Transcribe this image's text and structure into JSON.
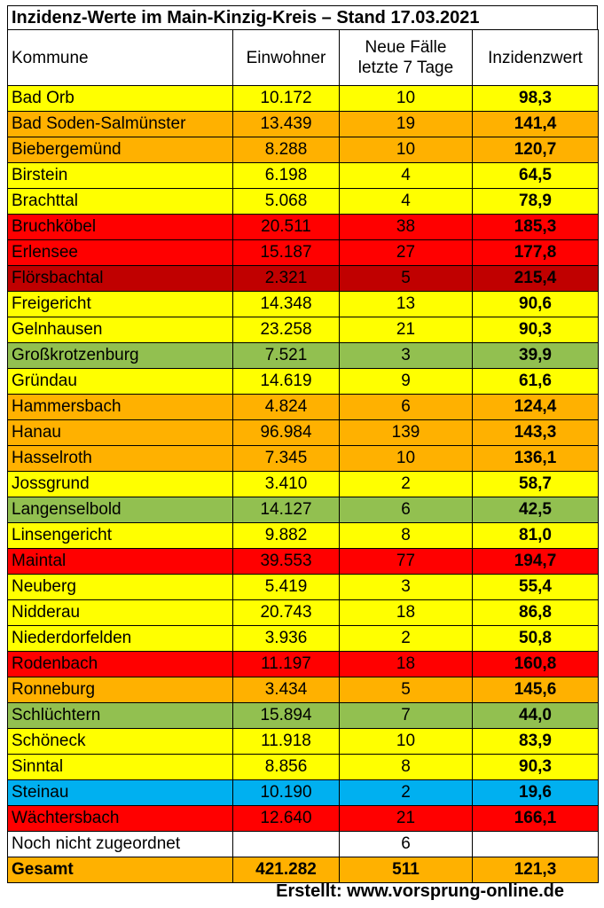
{
  "title": "Inzidenz-Werte im Main-Kinzig-Kreis – Stand 17.03.2021",
  "headers": {
    "kommune": "Kommune",
    "einwohner": "Einwohner",
    "faelle_line1": "Neue Fälle",
    "faelle_line2": "letzte 7 Tage",
    "inzidenz": "Inzidenzwert"
  },
  "colors": {
    "yellow": "#ffff00",
    "orange": "#ffb100",
    "red": "#ff0000",
    "darkred": "#c00000",
    "green": "#92c050",
    "blue": "#00b0f0",
    "white": "#ffffff",
    "total": "#ffb100"
  },
  "rows": [
    {
      "kommune": "Bad Orb",
      "einwohner": "10.172",
      "faelle": "10",
      "inzidenz": "98,3",
      "color": "yellow"
    },
    {
      "kommune": "Bad Soden-Salmünster",
      "einwohner": "13.439",
      "faelle": "19",
      "inzidenz": "141,4",
      "color": "orange"
    },
    {
      "kommune": "Biebergemünd",
      "einwohner": "8.288",
      "faelle": "10",
      "inzidenz": "120,7",
      "color": "orange"
    },
    {
      "kommune": "Birstein",
      "einwohner": "6.198",
      "faelle": "4",
      "inzidenz": "64,5",
      "color": "yellow"
    },
    {
      "kommune": "Brachttal",
      "einwohner": "5.068",
      "faelle": "4",
      "inzidenz": "78,9",
      "color": "yellow"
    },
    {
      "kommune": "Bruchköbel",
      "einwohner": "20.511",
      "faelle": "38",
      "inzidenz": "185,3",
      "color": "red"
    },
    {
      "kommune": "Erlensee",
      "einwohner": "15.187",
      "faelle": "27",
      "inzidenz": "177,8",
      "color": "red"
    },
    {
      "kommune": "Flörsbachtal",
      "einwohner": "2.321",
      "faelle": "5",
      "inzidenz": "215,4",
      "color": "darkred"
    },
    {
      "kommune": "Freigericht",
      "einwohner": "14.348",
      "faelle": "13",
      "inzidenz": "90,6",
      "color": "yellow"
    },
    {
      "kommune": "Gelnhausen",
      "einwohner": "23.258",
      "faelle": "21",
      "inzidenz": "90,3",
      "color": "yellow"
    },
    {
      "kommune": "Großkrotzenburg",
      "einwohner": "7.521",
      "faelle": "3",
      "inzidenz": "39,9",
      "color": "green"
    },
    {
      "kommune": "Gründau",
      "einwohner": "14.619",
      "faelle": "9",
      "inzidenz": "61,6",
      "color": "yellow"
    },
    {
      "kommune": "Hammersbach",
      "einwohner": "4.824",
      "faelle": "6",
      "inzidenz": "124,4",
      "color": "orange"
    },
    {
      "kommune": "Hanau",
      "einwohner": "96.984",
      "faelle": "139",
      "inzidenz": "143,3",
      "color": "orange"
    },
    {
      "kommune": "Hasselroth",
      "einwohner": "7.345",
      "faelle": "10",
      "inzidenz": "136,1",
      "color": "orange"
    },
    {
      "kommune": "Jossgrund",
      "einwohner": "3.410",
      "faelle": "2",
      "inzidenz": "58,7",
      "color": "yellow"
    },
    {
      "kommune": "Langenselbold",
      "einwohner": "14.127",
      "faelle": "6",
      "inzidenz": "42,5",
      "color": "green"
    },
    {
      "kommune": "Linsengericht",
      "einwohner": "9.882",
      "faelle": "8",
      "inzidenz": "81,0",
      "color": "yellow"
    },
    {
      "kommune": "Maintal",
      "einwohner": "39.553",
      "faelle": "77",
      "inzidenz": "194,7",
      "color": "red"
    },
    {
      "kommune": "Neuberg",
      "einwohner": "5.419",
      "faelle": "3",
      "inzidenz": "55,4",
      "color": "yellow"
    },
    {
      "kommune": "Nidderau",
      "einwohner": "20.743",
      "faelle": "18",
      "inzidenz": "86,8",
      "color": "yellow"
    },
    {
      "kommune": "Niederdorfelden",
      "einwohner": "3.936",
      "faelle": "2",
      "inzidenz": "50,8",
      "color": "yellow"
    },
    {
      "kommune": "Rodenbach",
      "einwohner": "11.197",
      "faelle": "18",
      "inzidenz": "160,8",
      "color": "red"
    },
    {
      "kommune": "Ronneburg",
      "einwohner": "3.434",
      "faelle": "5",
      "inzidenz": "145,6",
      "color": "orange"
    },
    {
      "kommune": "Schlüchtern",
      "einwohner": "15.894",
      "faelle": "7",
      "inzidenz": "44,0",
      "color": "green"
    },
    {
      "kommune": "Schöneck",
      "einwohner": "11.918",
      "faelle": "10",
      "inzidenz": "83,9",
      "color": "yellow"
    },
    {
      "kommune": "Sinntal",
      "einwohner": "8.856",
      "faelle": "8",
      "inzidenz": "90,3",
      "color": "yellow"
    },
    {
      "kommune": "Steinau",
      "einwohner": "10.190",
      "faelle": "2",
      "inzidenz": "19,6",
      "color": "blue"
    },
    {
      "kommune": "Wächtersbach",
      "einwohner": "12.640",
      "faelle": "21",
      "inzidenz": "166,1",
      "color": "red"
    },
    {
      "kommune": "Noch nicht zugeordnet",
      "einwohner": "",
      "faelle": "6",
      "inzidenz": "",
      "color": "white"
    }
  ],
  "total": {
    "kommune": "Gesamt",
    "einwohner": "421.282",
    "faelle": "511",
    "inzidenz": "121,3",
    "color": "total"
  },
  "credit": "Erstellt: www.vorsprung-online.de"
}
